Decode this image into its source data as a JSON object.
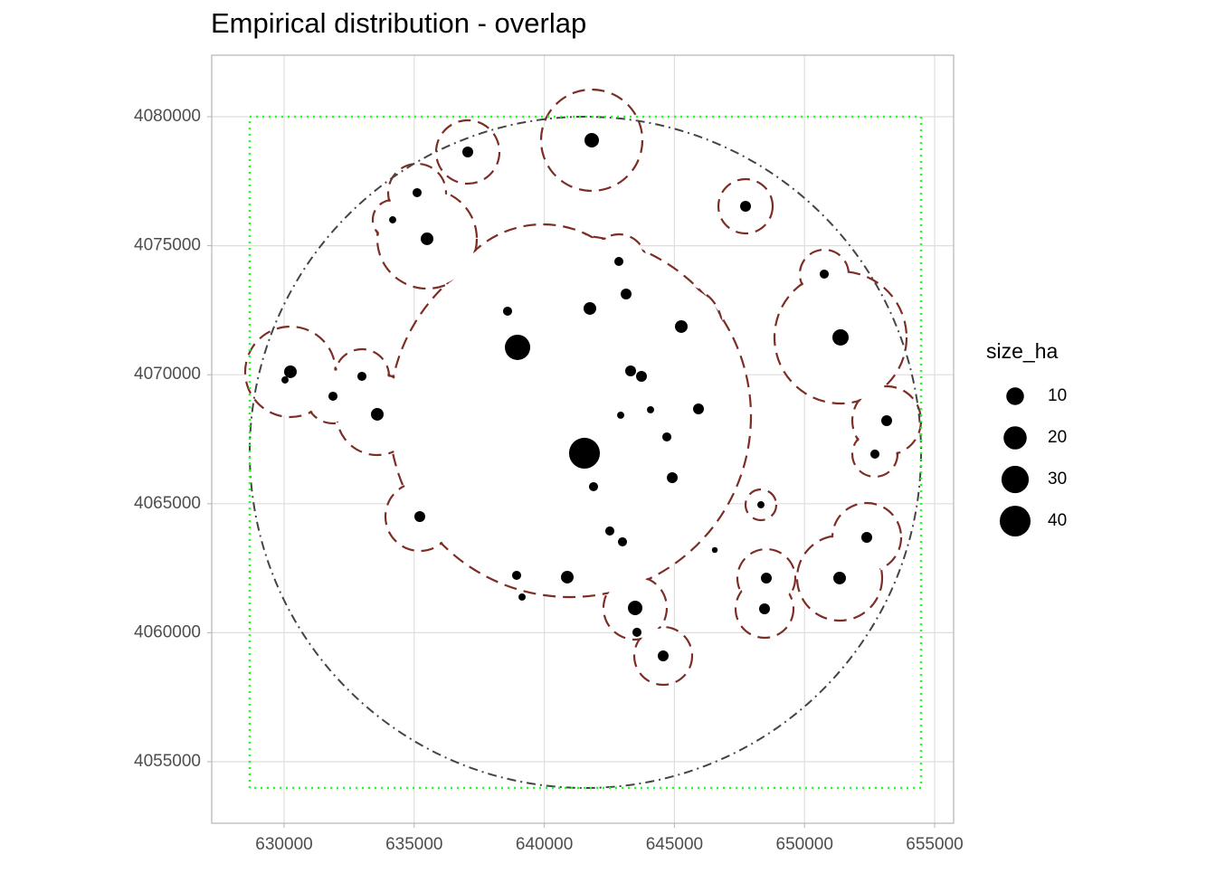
{
  "chart_data": {
    "type": "scatter",
    "title": "Empirical distribution - overlap",
    "x": [
      641822,
      637058,
      635111,
      647733,
      634172,
      635494,
      642865,
      643143,
      650758,
      638588,
      641752,
      645264,
      638971,
      651384,
      630243,
      630035,
      632990,
      643317,
      643734,
      631878,
      633581,
      644082,
      642935,
      645925,
      653157,
      644708,
      641543,
      652705,
      644917,
      641891,
      648324,
      635215,
      642517,
      643004,
      652392,
      646551,
      638936,
      640883,
      648532,
      651349,
      639145,
      643491,
      648463,
      643560,
      644568
    ],
    "y": [
      4079088,
      4078633,
      4077055,
      4076529,
      4076003,
      4075267,
      4074390,
      4073128,
      4073900,
      4072462,
      4072567,
      4071866,
      4071060,
      4071446,
      4070113,
      4069797,
      4069938,
      4070148,
      4069938,
      4069166,
      4068465,
      4068641,
      4068430,
      4068675,
      4068220,
      4067589,
      4066958,
      4066923,
      4066011,
      4065660,
      4064959,
      4064503,
      4063943,
      4063522,
      4063697,
      4063207,
      4062224,
      4062154,
      4062119,
      4062119,
      4061383,
      4060962,
      4060927,
      4060016,
      4059104
    ],
    "size": [
      5.7,
      2.3,
      1.2,
      2.3,
      0.4,
      3.8,
      1.2,
      2.3,
      1.2,
      1.2,
      3.8,
      3.8,
      25,
      8,
      3.8,
      0.4,
      1.2,
      2.3,
      2.3,
      1.2,
      3.8,
      0.4,
      0.4,
      2.3,
      2.3,
      1.2,
      40,
      1.2,
      2.3,
      1.2,
      0.4,
      2.3,
      1.2,
      1.2,
      2.3,
      0.1,
      1.2,
      3.8,
      2.3,
      3.8,
      0.4,
      5.7,
      2.3,
      1.2,
      2.3
    ],
    "color": "#000000",
    "xlim": [
      627218,
      655730
    ],
    "ylim": [
      4052616,
      4082384
    ],
    "xticks": [
      630000,
      635000,
      640000,
      645000,
      650000,
      655000
    ],
    "yticks": [
      4055000,
      4060000,
      4065000,
      4070000,
      4075000,
      4080000
    ],
    "grid": true,
    "size_legend": {
      "title": "size_ha",
      "breaks": [
        10,
        20,
        30,
        40
      ]
    }
  }
}
